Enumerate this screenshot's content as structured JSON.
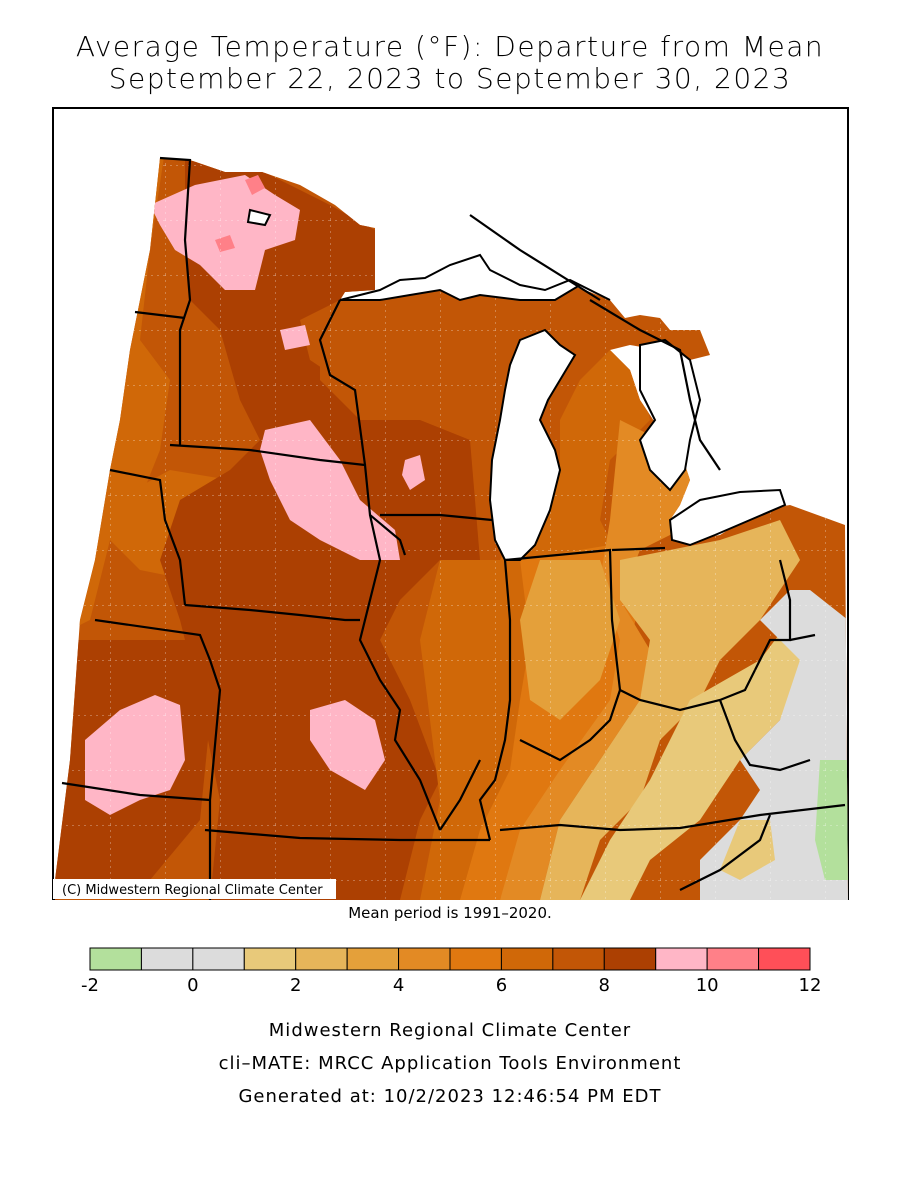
{
  "title_line1": "Average Temperature (°F): Departure from Mean",
  "title_line2": "September 22, 2023 to September 30, 2023",
  "copyright": "(C) Midwestern Regional Climate Center",
  "mean_period": "Mean period is 1991–2020.",
  "legend": {
    "ticks": [
      "-2",
      "0",
      "2",
      "4",
      "6",
      "8",
      "10",
      "12"
    ],
    "bins": [
      {
        "from": -2,
        "to": -1,
        "color": "#b3e09c"
      },
      {
        "from": -1,
        "to": 0,
        "color": "#dcdcdc"
      },
      {
        "from": 0,
        "to": 1,
        "color": "#dcdcdc"
      },
      {
        "from": 1,
        "to": 2,
        "color": "#e8c97a"
      },
      {
        "from": 2,
        "to": 3,
        "color": "#e6b55a"
      },
      {
        "from": 3,
        "to": 4,
        "color": "#e4a03a"
      },
      {
        "from": 4,
        "to": 5,
        "color": "#e38a24"
      },
      {
        "from": 5,
        "to": 6,
        "color": "#e07810"
      },
      {
        "from": 6,
        "to": 7,
        "color": "#d06808"
      },
      {
        "from": 7,
        "to": 8,
        "color": "#c25606"
      },
      {
        "from": 8,
        "to": 9,
        "color": "#ac4002"
      },
      {
        "from": 9,
        "to": 10,
        "color": "#ffb6c6"
      },
      {
        "from": 10,
        "to": 11,
        "color": "#ff8088"
      },
      {
        "from": 11,
        "to": 12,
        "color": "#ff4f58"
      }
    ]
  },
  "footer": {
    "line1": "Midwestern Regional Climate Center",
    "line2": "cli–MATE: MRCC Application Tools Environment",
    "line3": "Generated at: 10/2/2023 12:46:54 PM EDT"
  }
}
